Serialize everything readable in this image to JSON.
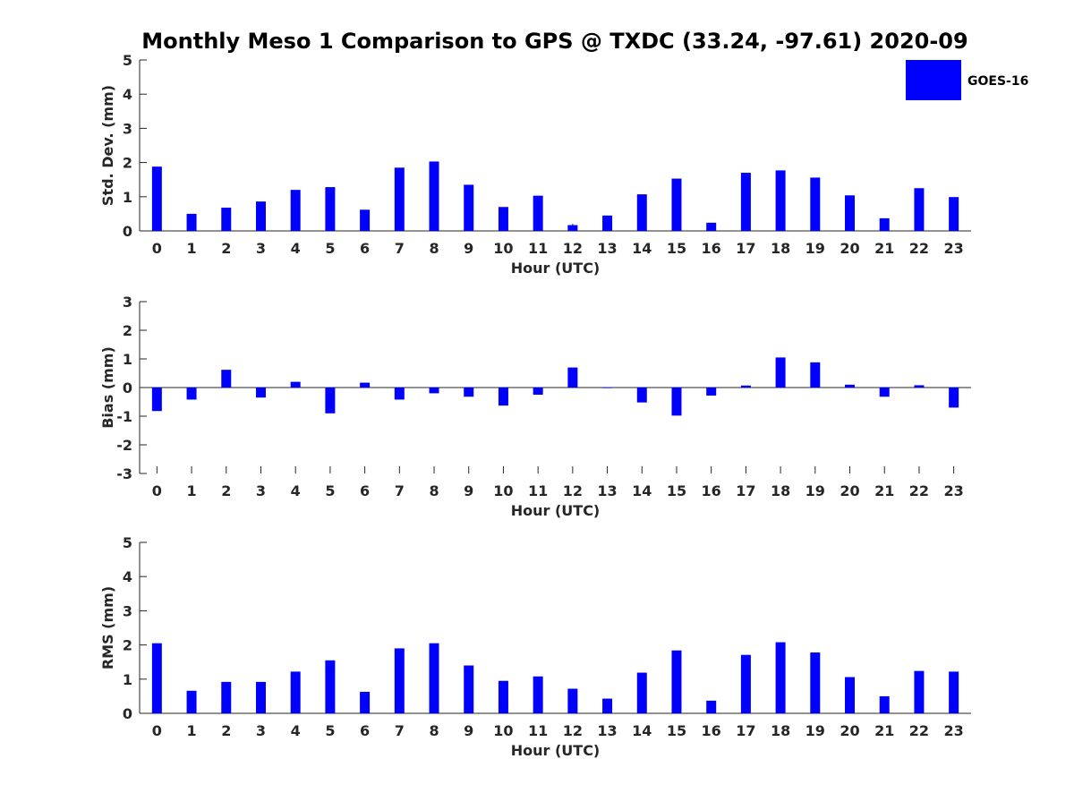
{
  "title": "Monthly Meso 1 Comparison to GPS @ TXDC (33.24, -97.61) 2020-09",
  "legend": {
    "label": "GOES-16",
    "color": "#0000ff"
  },
  "chart_data": [
    {
      "type": "bar",
      "name": "std-dev",
      "title": "Monthly Meso 1 Comparison to GPS @ TXDC (33.24, -97.61) 2020-09",
      "xlabel": "Hour (UTC)",
      "ylabel": "Std. Dev. (mm)",
      "ylim": [
        0,
        5
      ],
      "yticks": [
        0,
        1,
        2,
        3,
        4,
        5
      ],
      "categories": [
        "0",
        "1",
        "2",
        "3",
        "4",
        "5",
        "6",
        "7",
        "8",
        "9",
        "10",
        "11",
        "12",
        "13",
        "14",
        "15",
        "16",
        "17",
        "18",
        "19",
        "20",
        "21",
        "22",
        "23"
      ],
      "series": [
        {
          "name": "GOES-16",
          "values": [
            1.88,
            0.5,
            0.68,
            0.86,
            1.2,
            1.28,
            0.62,
            1.85,
            2.03,
            1.35,
            0.7,
            1.03,
            0.17,
            0.45,
            1.07,
            1.53,
            0.24,
            1.7,
            1.77,
            1.56,
            1.04,
            0.37,
            1.25,
            0.99
          ]
        }
      ]
    },
    {
      "type": "bar",
      "name": "bias",
      "xlabel": "Hour (UTC)",
      "ylabel": "Bias (mm)",
      "ylim": [
        -3,
        3
      ],
      "yticks": [
        -3,
        -2,
        -1,
        0,
        1,
        2,
        3
      ],
      "categories": [
        "0",
        "1",
        "2",
        "3",
        "4",
        "5",
        "6",
        "7",
        "8",
        "9",
        "10",
        "11",
        "12",
        "13",
        "14",
        "15",
        "16",
        "17",
        "18",
        "19",
        "20",
        "21",
        "22",
        "23"
      ],
      "series": [
        {
          "name": "GOES-16",
          "values": [
            -0.82,
            -0.42,
            0.62,
            -0.35,
            0.2,
            -0.9,
            0.17,
            -0.42,
            -0.2,
            -0.32,
            -0.63,
            -0.25,
            0.7,
            -0.02,
            -0.52,
            -0.98,
            -0.28,
            0.07,
            1.05,
            0.88,
            0.1,
            -0.32,
            0.08,
            -0.7
          ]
        }
      ]
    },
    {
      "type": "bar",
      "name": "rms",
      "xlabel": "Hour (UTC)",
      "ylabel": "RMS (mm)",
      "ylim": [
        0,
        5
      ],
      "yticks": [
        0,
        1,
        2,
        3,
        4,
        5
      ],
      "categories": [
        "0",
        "1",
        "2",
        "3",
        "4",
        "5",
        "6",
        "7",
        "8",
        "9",
        "10",
        "11",
        "12",
        "13",
        "14",
        "15",
        "16",
        "17",
        "18",
        "19",
        "20",
        "21",
        "22",
        "23"
      ],
      "series": [
        {
          "name": "GOES-16",
          "values": [
            2.05,
            0.66,
            0.92,
            0.92,
            1.22,
            1.55,
            0.63,
            1.9,
            2.05,
            1.4,
            0.95,
            1.08,
            0.72,
            0.43,
            1.19,
            1.84,
            0.37,
            1.71,
            2.08,
            1.78,
            1.06,
            0.5,
            1.24,
            1.22
          ]
        }
      ]
    }
  ]
}
